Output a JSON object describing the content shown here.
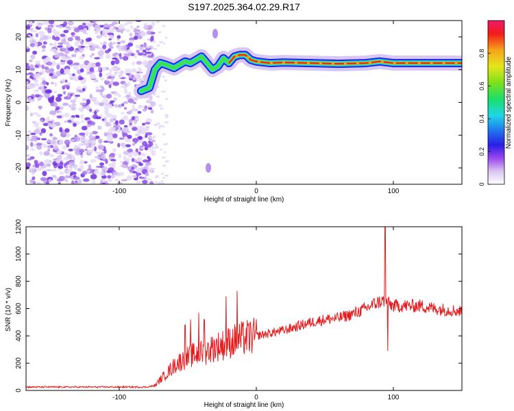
{
  "title": "S197.2025.364.02.29.R17",
  "chart_data": [
    {
      "type": "heatmap",
      "title": "S197.2025.364.02.29.R17",
      "xlabel": "Height of straight line (km)",
      "ylabel": "Frequency (Hz)",
      "xlim": [
        -168,
        150
      ],
      "ylim": [
        -25,
        25
      ],
      "xticks": [
        -100,
        0,
        100
      ],
      "yticks": [
        -20,
        -10,
        0,
        10,
        20
      ],
      "colorbar": {
        "label": "Normalized spectral amplitude",
        "range": [
          0,
          1
        ],
        "ticks": [
          0,
          0.2,
          0.4,
          0.6,
          0.8
        ]
      },
      "noise_region_x": [
        -168,
        -75
      ],
      "signal_track": {
        "x": [
          -84,
          -78,
          -74,
          -70,
          -66,
          -60,
          -56,
          -52,
          -48,
          -44,
          -40,
          -36,
          -32,
          -28,
          -24,
          -20,
          -16,
          -12,
          -8,
          -4,
          0,
          10,
          20,
          40,
          60,
          80,
          90,
          100,
          120,
          150
        ],
        "y": [
          3.5,
          4.5,
          10,
          12,
          11.5,
          10.5,
          11.5,
          12.5,
          12,
          13,
          14,
          12,
          10,
          11,
          13.5,
          12,
          14,
          14.5,
          14.5,
          13,
          12.5,
          12,
          12.2,
          12,
          11.8,
          12,
          12.5,
          12,
          12,
          12
        ]
      },
      "secondary_features": [
        {
          "x": -30,
          "y": 21
        },
        {
          "x": -35,
          "y": -20
        }
      ]
    },
    {
      "type": "line",
      "xlabel": "Height of straight line (km)",
      "ylabel": "SNR (10 * v/v)",
      "xlim": [
        -168,
        150
      ],
      "ylim": [
        0,
        1200
      ],
      "xticks": [
        -100,
        0,
        100
      ],
      "yticks": [
        0,
        200,
        400,
        600,
        800,
        1000,
        1200
      ],
      "color": "#e41a1c",
      "series": [
        {
          "name": "SNR",
          "x": [
            -168,
            -120,
            -80,
            -74,
            -70,
            -66,
            -62,
            -58,
            -54,
            -50,
            -46,
            -42,
            -38,
            -34,
            -30,
            -26,
            -22,
            -18,
            -14,
            -10,
            -6,
            -2,
            0,
            10,
            20,
            30,
            40,
            50,
            60,
            70,
            80,
            85,
            90,
            94,
            96,
            100,
            110,
            120,
            130,
            140,
            150
          ],
          "y": [
            25,
            25,
            25,
            35,
            80,
            120,
            160,
            200,
            220,
            240,
            260,
            270,
            280,
            300,
            320,
            330,
            340,
            360,
            370,
            380,
            390,
            395,
            400,
            420,
            440,
            470,
            500,
            520,
            530,
            560,
            600,
            630,
            650,
            660,
            640,
            620,
            620,
            620,
            600,
            590,
            580
          ]
        }
      ],
      "spikes": [
        {
          "x": -52,
          "y": 480
        },
        {
          "x": -48,
          "y": 520
        },
        {
          "x": -42,
          "y": 570
        },
        {
          "x": -38,
          "y": 520
        },
        {
          "x": -22,
          "y": 690
        },
        {
          "x": -14,
          "y": 730
        },
        {
          "x": 94,
          "y": 1200
        },
        {
          "x": 96,
          "y": 290
        }
      ]
    }
  ]
}
